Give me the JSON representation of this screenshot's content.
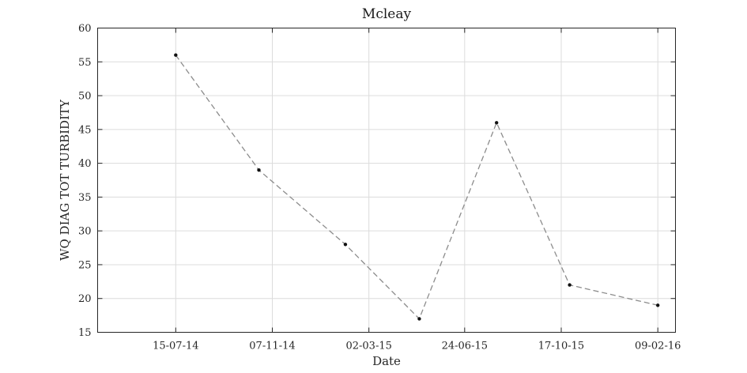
{
  "chart_data": {
    "type": "line",
    "title": "Mcleay",
    "xlabel": "Date",
    "ylabel": "WQ DIAG TOT TURBIDITY",
    "x_type": "date",
    "x_tick_labels": [
      "15-07-14",
      "07-11-14",
      "02-03-15",
      "24-06-15",
      "17-10-15",
      "09-02-16"
    ],
    "x_tick_dates": [
      "2014-07-15",
      "2014-11-07",
      "2015-03-02",
      "2015-06-24",
      "2015-10-17",
      "2016-02-09"
    ],
    "xlim": [
      "2014-04-13",
      "2016-03-01"
    ],
    "ylim": [
      15,
      60
    ],
    "y_ticks": [
      15,
      20,
      25,
      30,
      35,
      40,
      45,
      50,
      55,
      60
    ],
    "grid": true,
    "series": [
      {
        "x": [
          "2014-07-15",
          "2014-10-22",
          "2015-02-02",
          "2015-05-01",
          "2015-08-01",
          "2015-10-27",
          "2016-02-09"
        ],
        "y": [
          56,
          39,
          28,
          17,
          46,
          22,
          19
        ]
      }
    ]
  }
}
